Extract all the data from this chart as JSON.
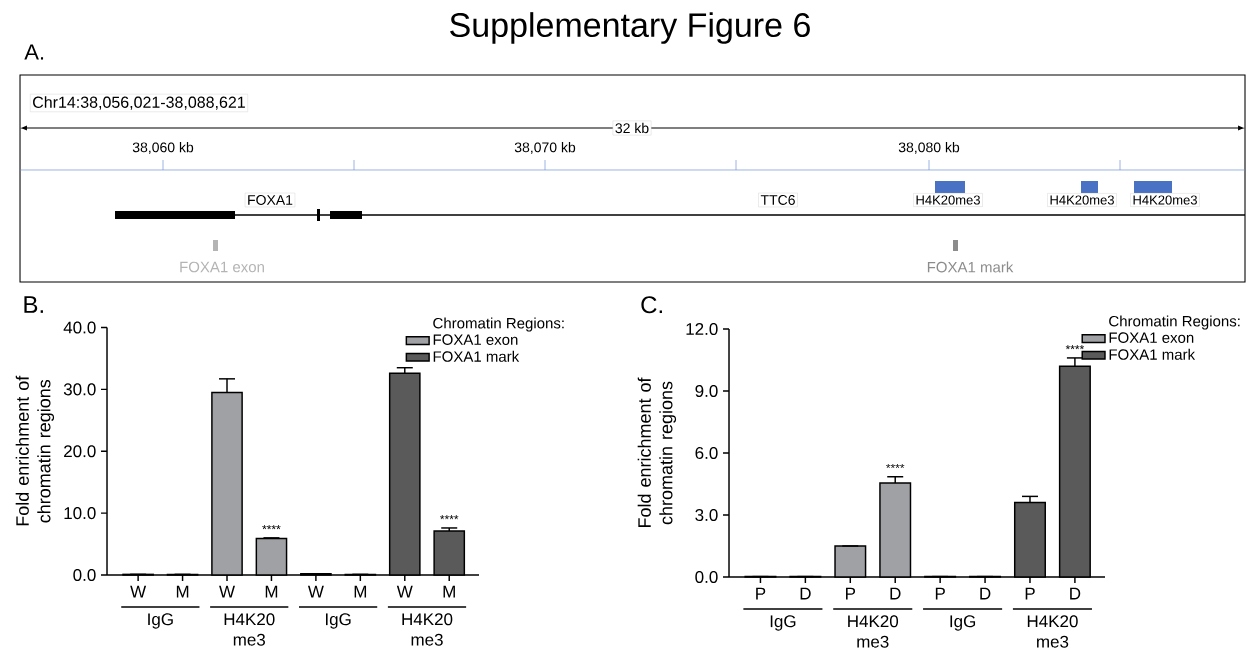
{
  "chart_data": [
    {
      "type": "other",
      "title": "Supplementary Figure 6",
      "annotations": [
        "A.",
        "Chr14:38,056,021-38,088,621",
        "32 kb",
        "38,060 kb",
        "38,070 kb",
        "38,080 kb",
        "FOXA1",
        "TTC6",
        "H4K20me3",
        "H4K20me3",
        "H4K20me3",
        "FOXA1 exon",
        "FOXA1 mark"
      ]
    },
    {
      "type": "bar",
      "title": "B.",
      "ylabel": "Fold enrichment of chromatin regions",
      "categories": [
        "W",
        "M",
        "W",
        "M",
        "W",
        "M",
        "W",
        "M"
      ],
      "ylim": [
        0,
        40
      ],
      "yticks": [
        {
          "value": 0,
          "label": "0.0"
        },
        {
          "value": 10,
          "label": "10.0"
        },
        {
          "value": 20,
          "label": "20.0"
        },
        {
          "value": 30,
          "label": "30.0"
        },
        {
          "value": 40,
          "label": "40.0"
        }
      ],
      "legend": "top right",
      "legend_title": "Chromatin Regions:",
      "annotations": [
        "IgG",
        "H4K20 me3",
        "IgG",
        "H4K20 me3"
      ],
      "series": [
        {
          "name": "FOXA1 exon",
          "color": "#a0a1a5",
          "values": [
            0.1,
            0.1,
            29.5,
            5.9,
            null,
            null,
            null,
            null
          ],
          "errors": [
            null,
            null,
            2.2,
            0.1,
            null,
            null,
            null,
            null
          ],
          "value_labels": [
            null,
            null,
            null,
            "****",
            null,
            null,
            null,
            null
          ]
        },
        {
          "name": "FOXA1 mark",
          "color": "#5a5a5a",
          "values": [
            null,
            null,
            null,
            null,
            0.2,
            0.1,
            32.6,
            7.1
          ],
          "errors": [
            null,
            null,
            null,
            null,
            null,
            null,
            0.9,
            0.5
          ],
          "value_labels": [
            null,
            null,
            null,
            null,
            null,
            null,
            null,
            "****"
          ]
        }
      ]
    },
    {
      "type": "bar",
      "title": "C.",
      "ylabel": "Fold enrichment of chromatin regions",
      "categories": [
        "P",
        "D",
        "P",
        "D",
        "P",
        "D",
        "P",
        "D"
      ],
      "ylim": [
        0,
        12
      ],
      "yticks": [
        {
          "value": 0,
          "label": "0.0"
        },
        {
          "value": 3,
          "label": "3.0"
        },
        {
          "value": 6,
          "label": "6.0"
        },
        {
          "value": 9,
          "label": "9.0"
        },
        {
          "value": 12,
          "label": "12.0"
        }
      ],
      "legend": "top right",
      "legend_title": "Chromatin Regions:",
      "annotations": [
        "IgG",
        "H4K20 me3",
        "IgG",
        "H4K20 me3"
      ],
      "series": [
        {
          "name": "FOXA1 exon",
          "color": "#a0a1a5",
          "values": [
            0.02,
            0.02,
            1.5,
            4.55,
            null,
            null,
            null,
            null
          ],
          "errors": [
            null,
            null,
            null,
            0.3,
            null,
            null,
            null,
            null
          ],
          "value_labels": [
            null,
            null,
            null,
            "****",
            null,
            null,
            null,
            null
          ]
        },
        {
          "name": "FOXA1 mark",
          "color": "#5a5a5a",
          "values": [
            null,
            null,
            null,
            null,
            0.02,
            0.02,
            3.6,
            10.2
          ],
          "errors": [
            null,
            null,
            null,
            null,
            null,
            null,
            0.3,
            0.4
          ],
          "value_labels": [
            null,
            null,
            null,
            null,
            null,
            null,
            null,
            "****"
          ]
        }
      ]
    }
  ]
}
